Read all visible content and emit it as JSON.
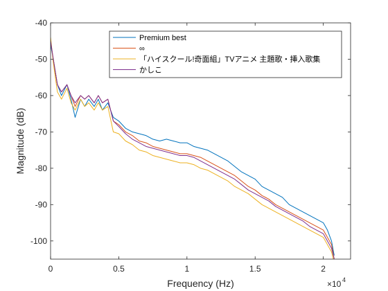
{
  "chart_data": {
    "type": "line",
    "xlabel": "Frequency (Hz)",
    "ylabel": "Magnitude (dB)",
    "x_exponent_label": "×10",
    "x_exponent_power": "4",
    "xlim": [
      0,
      22000
    ],
    "ylim": [
      -105,
      -40
    ],
    "grid": false,
    "legend_position": "top-right",
    "x_ticks": [
      {
        "value": 0,
        "label": "0"
      },
      {
        "value": 5000,
        "label": "0.5"
      },
      {
        "value": 10000,
        "label": "1"
      },
      {
        "value": 15000,
        "label": "1.5"
      },
      {
        "value": 20000,
        "label": "2"
      }
    ],
    "y_ticks": [
      {
        "value": -40,
        "label": "-40"
      },
      {
        "value": -50,
        "label": "-50"
      },
      {
        "value": -60,
        "label": "-60"
      },
      {
        "value": -70,
        "label": "-70"
      },
      {
        "value": -80,
        "label": "-80"
      },
      {
        "value": -90,
        "label": "-90"
      },
      {
        "value": -100,
        "label": "-100"
      }
    ],
    "x": [
      0,
      200,
      500,
      800,
      1200,
      1500,
      1800,
      2200,
      2500,
      2800,
      3200,
      3500,
      3800,
      4200,
      4600,
      5000,
      5500,
      6000,
      6500,
      7000,
      7500,
      8000,
      8500,
      9000,
      9500,
      10000,
      10500,
      11000,
      11500,
      12000,
      12500,
      13000,
      13500,
      14000,
      14500,
      15000,
      15500,
      16000,
      16500,
      17000,
      17500,
      18000,
      18500,
      19000,
      19500,
      20000,
      20300,
      20600,
      20800
    ],
    "series": [
      {
        "name": "Premium best",
        "color": "#0072BD",
        "values": [
          -46,
          -50,
          -57,
          -60,
          -57,
          -61,
          -66,
          -61,
          -63,
          -61,
          -63,
          -61,
          -64,
          -62,
          -66,
          -67,
          -69,
          -70,
          -70.5,
          -71,
          -72,
          -72.5,
          -72,
          -72.5,
          -73,
          -73,
          -74,
          -74.5,
          -75,
          -76,
          -77,
          -78,
          -79.5,
          -81,
          -82,
          -83,
          -85,
          -86,
          -87,
          -88,
          -90,
          -91,
          -92,
          -93,
          -94,
          -95,
          -97,
          -100,
          -104
        ]
      },
      {
        "name": "∞",
        "color": "#D95319",
        "values": [
          -45,
          -50,
          -57,
          -59,
          -57,
          -60,
          -63,
          -60,
          -61,
          -60,
          -62,
          -60,
          -62,
          -61,
          -67,
          -68,
          -70,
          -71,
          -72.5,
          -73,
          -74,
          -74.5,
          -75,
          -75.5,
          -76,
          -76,
          -76.5,
          -77,
          -78,
          -79,
          -80,
          -81,
          -82,
          -83.5,
          -85,
          -86,
          -87.5,
          -88.5,
          -90,
          -91,
          -92,
          -93,
          -94,
          -95,
          -96,
          -97,
          -99,
          -101,
          -105
        ]
      },
      {
        "name": "「ハイスクール!奇面組」TVアニメ 主題歌・挿入歌集",
        "color": "#EDB120",
        "values": [
          -44,
          -51,
          -59,
          -61,
          -58,
          -62,
          -64,
          -61,
          -63,
          -62,
          -64,
          -62,
          -64,
          -63,
          -70,
          -70.5,
          -72.5,
          -73.5,
          -75,
          -75.5,
          -76.5,
          -77,
          -77.5,
          -78,
          -78.5,
          -78.5,
          -79,
          -80,
          -80.5,
          -81.5,
          -82.5,
          -83.5,
          -85,
          -86,
          -87,
          -88.5,
          -90,
          -91,
          -92,
          -93,
          -94,
          -95,
          -96,
          -97,
          -98,
          -99,
          -101,
          -103,
          -106
        ]
      },
      {
        "name": "かしこ",
        "color": "#7E2F8E",
        "values": [
          -45,
          -50,
          -57,
          -59,
          -57,
          -60,
          -62,
          -60,
          -61,
          -60,
          -62,
          -60,
          -62,
          -61,
          -67,
          -68.5,
          -70.5,
          -72,
          -73,
          -74,
          -74.5,
          -75,
          -75.5,
          -76,
          -76.5,
          -76.5,
          -77,
          -78,
          -79,
          -80,
          -81,
          -82,
          -83,
          -84.5,
          -86,
          -87,
          -88,
          -89,
          -90.5,
          -91.5,
          -92.5,
          -93.5,
          -94.5,
          -96,
          -97,
          -98,
          -100,
          -102,
          -105
        ]
      }
    ]
  }
}
